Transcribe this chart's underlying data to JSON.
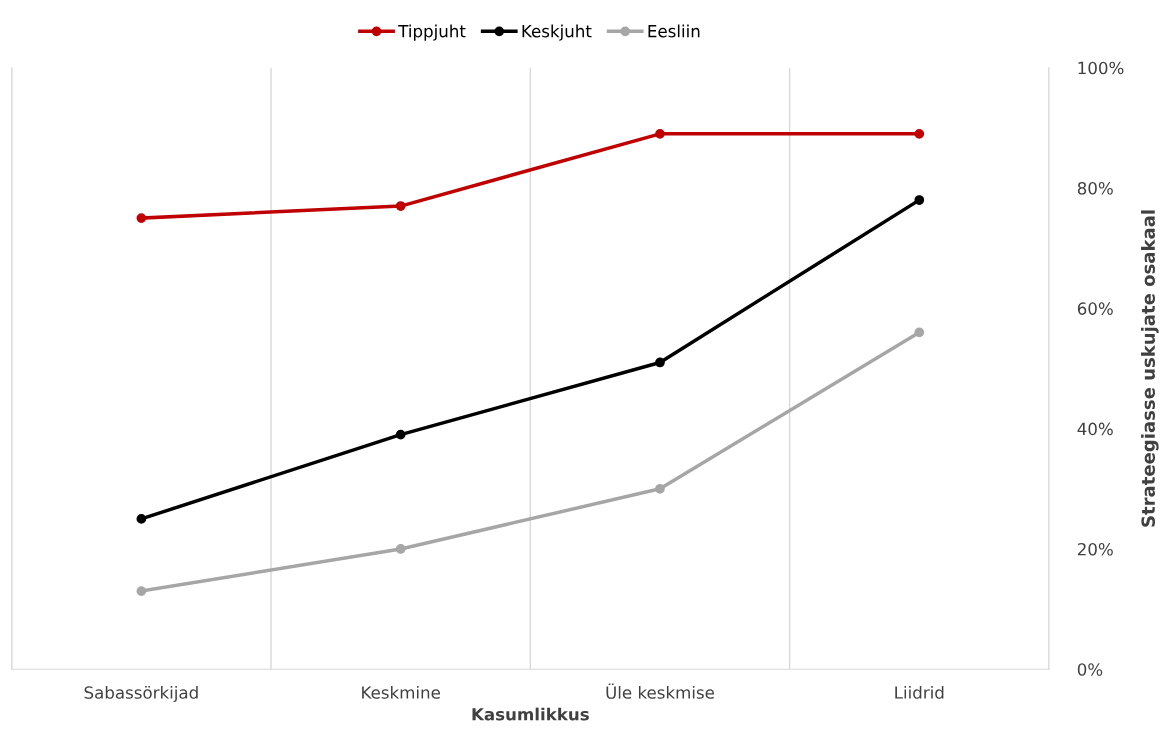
{
  "chart_data": {
    "type": "line",
    "xlabel": "Kasumlikkus",
    "ylabel": "Strateegiasse uskujate osakaal",
    "categories": [
      "Sabassörkijad",
      "Keskmine",
      "Üle keskmise",
      "Liidrid"
    ],
    "series": [
      {
        "name": "Tippjuht",
        "color": "#c00000",
        "values": [
          75,
          77,
          89,
          89
        ]
      },
      {
        "name": "Keskjuht",
        "color": "#000000",
        "values": [
          25,
          39,
          51,
          78
        ]
      },
      {
        "name": "Eesliin",
        "color": "#a6a6a6",
        "values": [
          13,
          20,
          30,
          56
        ]
      }
    ],
    "ylim": [
      0,
      100
    ],
    "yticks": [
      {
        "value": 0,
        "label": "0%"
      },
      {
        "value": 20,
        "label": "20%"
      },
      {
        "value": 40,
        "label": "40%"
      },
      {
        "value": 60,
        "label": "60%"
      },
      {
        "value": 80,
        "label": "80%"
      },
      {
        "value": 100,
        "label": "100%"
      }
    ],
    "grid": "x",
    "legend": "top",
    "marker": "circle",
    "line_style": "solid"
  }
}
